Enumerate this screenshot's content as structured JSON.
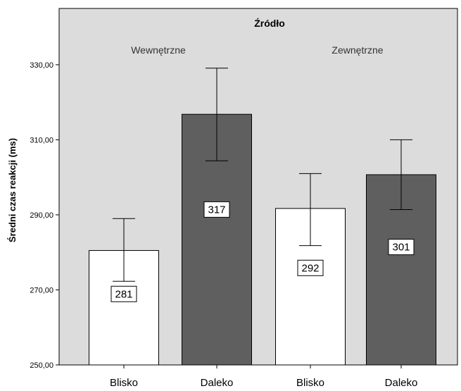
{
  "chart_data": {
    "type": "bar",
    "title": "Źródło",
    "ylabel": "Średni czas reakcji (ms)",
    "xlabel": "",
    "ylim": [
      250,
      345
    ],
    "yticks": [
      250,
      270,
      290,
      310,
      330
    ],
    "yticks_labels": [
      "250,00",
      "270,00",
      "290,00",
      "310,00",
      "330,00"
    ],
    "grid": false,
    "groups": [
      "Wewnętrzne",
      "Zewnętrzne"
    ],
    "bars": [
      {
        "group": "Wewnętrzne",
        "category": "Blisko",
        "value": 280.5,
        "label": "281",
        "err_low": 272.3,
        "err_high": 289.0,
        "color": "#ffffff"
      },
      {
        "group": "Wewnętrzne",
        "category": "Daleko",
        "value": 316.8,
        "label": "317",
        "err_low": 304.4,
        "err_high": 329.1,
        "color": "#5f5f5f"
      },
      {
        "group": "Zewnętrzne",
        "category": "Blisko",
        "value": 291.7,
        "label": "292",
        "err_low": 281.8,
        "err_high": 301.0,
        "color": "#ffffff"
      },
      {
        "group": "Zewnętrzne",
        "category": "Daleko",
        "value": 300.7,
        "label": "301",
        "err_low": 291.4,
        "err_high": 310.0,
        "color": "#5f5f5f"
      }
    ],
    "colors": {
      "background": "#dcdcdc",
      "bar_light": "#ffffff",
      "bar_dark": "#5f5f5f",
      "stroke": "#000000"
    }
  }
}
